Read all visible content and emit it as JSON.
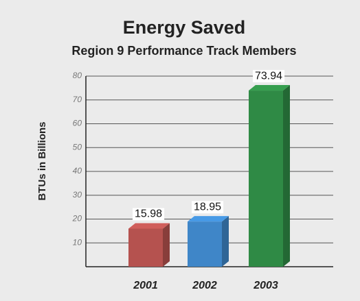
{
  "chart_data": {
    "type": "bar",
    "title": "Energy Saved",
    "subtitle": "Region 9 Performance Track Members",
    "y_label": "BTUs in Billions",
    "categories": [
      "2001",
      "2002",
      "2003"
    ],
    "values": [
      15.98,
      18.95,
      73.94
    ],
    "colors": [
      "#b5524f",
      "#3f86c8",
      "#2f8a45"
    ],
    "ylim": [
      0,
      80
    ],
    "yticks": [
      10,
      20,
      30,
      40,
      50,
      60,
      70,
      80
    ],
    "grid": true
  }
}
